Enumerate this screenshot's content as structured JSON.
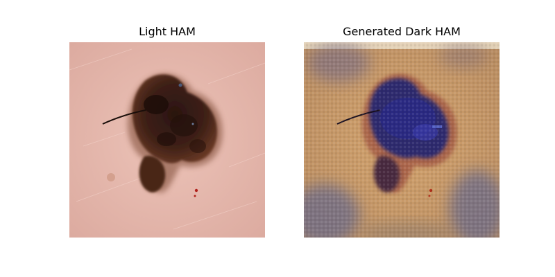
{
  "figure": {
    "panels": [
      {
        "title": "Light HAM",
        "image": "dermoscopic image of a dark brown pigmented skin lesion with a hair on light pink skin",
        "colors": {
          "skin": "#e6b4ab",
          "lesion_dark": "#2a1510",
          "lesion_mid": "#5a2f20"
        }
      },
      {
        "title": "Generated Dark HAM",
        "image": "generated image of the same lesion on tan skin with blue-purple core and checkerboard artifacts",
        "colors": {
          "skin": "#c79a6a",
          "lesion_core": "#2d2a6e",
          "artifact_purple": "#6e6688"
        }
      }
    ]
  }
}
